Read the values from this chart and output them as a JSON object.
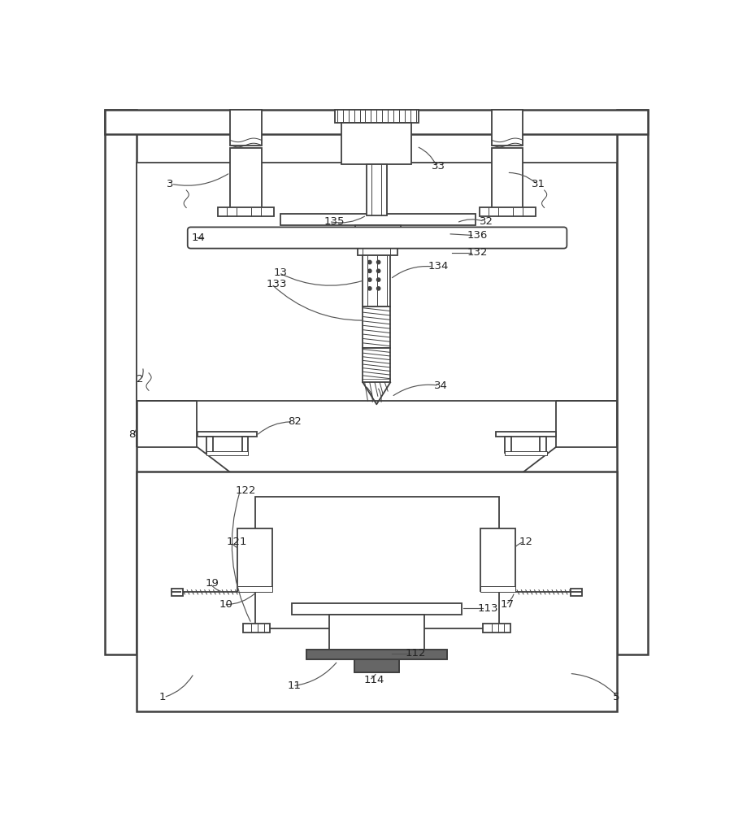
{
  "bg": "#ffffff",
  "lc": "#404040",
  "lw": 1.3,
  "lw2": 0.7,
  "lw3": 1.8
}
